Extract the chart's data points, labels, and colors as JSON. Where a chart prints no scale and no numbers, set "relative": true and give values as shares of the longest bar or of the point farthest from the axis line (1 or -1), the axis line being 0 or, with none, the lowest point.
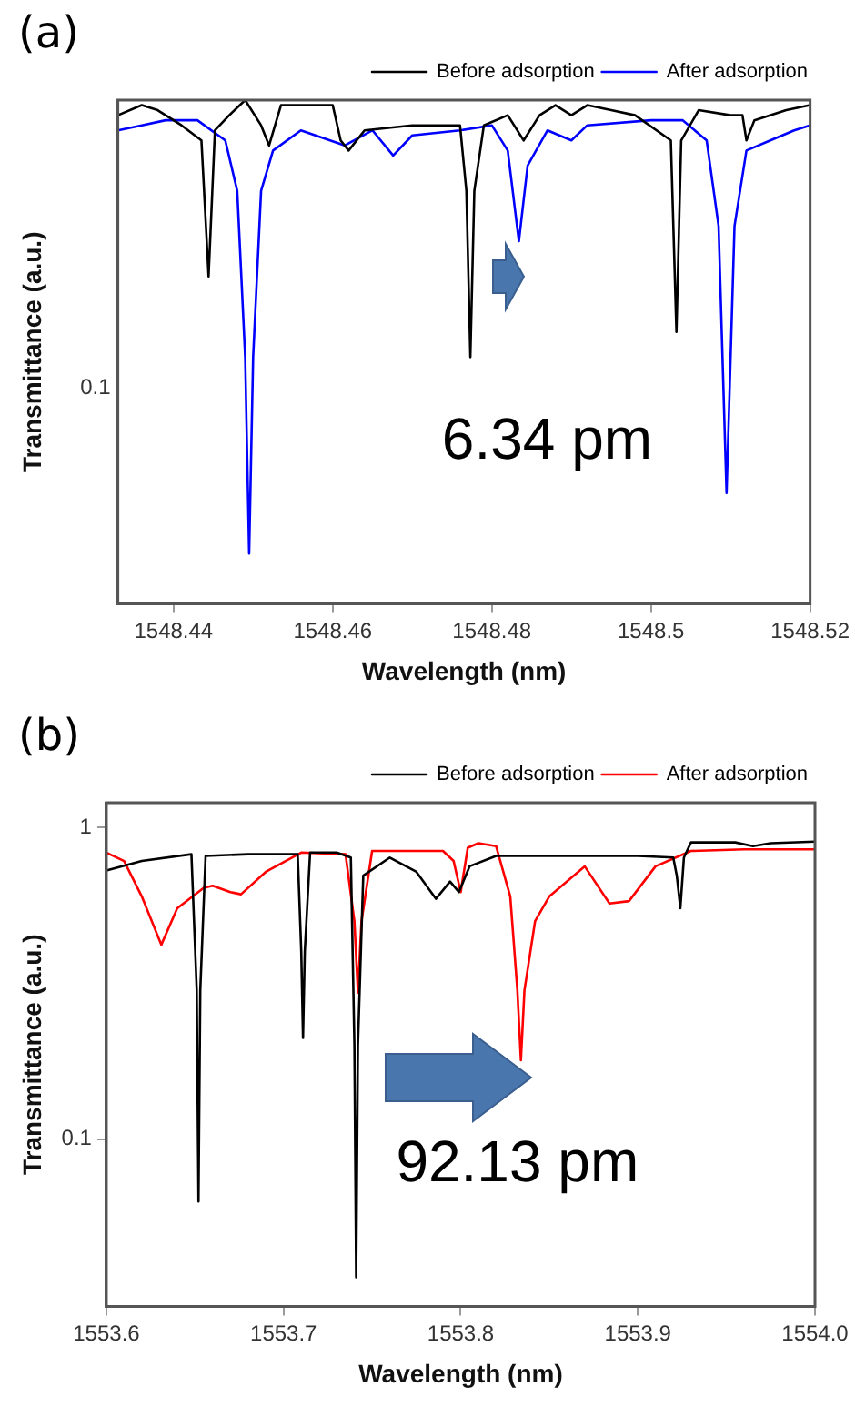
{
  "chart_data": [
    {
      "type": "line",
      "title": "(a)",
      "xlabel": "Wavelength (nm)",
      "ylabel": "Transmittance (a.u.)",
      "relative": true,
      "grid": false,
      "legend": "top right",
      "marker": "none",
      "line_style": "solid",
      "xlim": [
        1548.433,
        1548.52
      ],
      "xticks": [
        1548.44,
        1548.46,
        1548.48,
        1548.5,
        1548.52
      ],
      "annotations": [
        "6.34 pm",
        "0.1"
      ],
      "series": [
        {
          "name": "Before adsorption",
          "color": "#000000",
          "x": [
            1548.433,
            1548.436,
            1548.438,
            1548.441,
            1548.4435,
            1548.4444,
            1548.4452,
            1548.447,
            1548.449,
            1548.451,
            1548.452,
            1548.4535,
            1548.455,
            1548.46,
            1548.461,
            1548.462,
            1548.464,
            1548.47,
            1548.476,
            1548.4768,
            1548.4773,
            1548.4778,
            1548.479,
            1548.482,
            1548.484,
            1548.486,
            1548.488,
            1548.49,
            1548.492,
            1548.495,
            1548.498,
            1548.5025,
            1548.5032,
            1548.5038,
            1548.506,
            1548.51,
            1548.5115,
            1548.512,
            1548.513,
            1548.517,
            1548.52
          ],
          "values": [
            0.97,
            0.99,
            0.98,
            0.95,
            0.92,
            0.65,
            0.94,
            0.97,
            1,
            0.95,
            0.91,
            0.99,
            0.99,
            0.99,
            0.92,
            0.9,
            0.94,
            0.95,
            0.95,
            0.82,
            0.49,
            0.82,
            0.95,
            0.97,
            0.92,
            0.97,
            0.99,
            0.97,
            0.99,
            0.98,
            0.97,
            0.92,
            0.54,
            0.92,
            0.98,
            0.97,
            0.97,
            0.92,
            0.96,
            0.98,
            0.99
          ]
        },
        {
          "name": "After adsorption",
          "color": "#0000ff",
          "x": [
            1548.433,
            1548.436,
            1548.439,
            1548.443,
            1548.4465,
            1548.448,
            1548.449,
            1548.4495,
            1548.45,
            1548.451,
            1548.4525,
            1548.456,
            1548.4615,
            1548.465,
            1548.4676,
            1548.47,
            1548.476,
            1548.48,
            1548.482,
            1548.4834,
            1548.4845,
            1548.487,
            1548.49,
            1548.492,
            1548.5,
            1548.504,
            1548.507,
            1548.5085,
            1548.5095,
            1548.5105,
            1548.512,
            1548.515,
            1548.518,
            1548.52
          ],
          "values": [
            0.94,
            0.95,
            0.96,
            0.96,
            0.92,
            0.82,
            0.49,
            0.1,
            0.49,
            0.82,
            0.9,
            0.94,
            0.91,
            0.94,
            0.89,
            0.93,
            0.94,
            0.95,
            0.9,
            0.72,
            0.87,
            0.94,
            0.92,
            0.95,
            0.96,
            0.96,
            0.92,
            0.75,
            0.22,
            0.75,
            0.9,
            0.92,
            0.94,
            0.95
          ]
        }
      ]
    },
    {
      "type": "line",
      "title": "(b)",
      "xlabel": "Wavelength (nm)",
      "ylabel": "Transmittance (a.u.)",
      "log": "y",
      "grid": false,
      "legend": "top right",
      "marker": "none",
      "line_style": "solid",
      "xlim": [
        1553.6,
        1554.0
      ],
      "xticks": [
        1553.6,
        1553.7,
        1553.8,
        1553.9,
        {
          "value": 1554.0,
          "label": "1554.0"
        }
      ],
      "ylim": [
        0.029,
        1.2
      ],
      "yticks": [
        0.1,
        1
      ],
      "annotations": [
        "92.13 pm"
      ],
      "series": [
        {
          "name": "Before adsorption",
          "color": "#000000",
          "x": [
            1553.6,
            1553.62,
            1553.648,
            1553.651,
            1553.652,
            1553.653,
            1553.656,
            1553.68,
            1553.708,
            1553.71,
            1553.711,
            1553.712,
            1553.715,
            1553.73,
            1553.738,
            1553.74,
            1553.741,
            1553.742,
            1553.745,
            1553.76,
            1553.775,
            1553.786,
            1553.794,
            1553.799,
            1553.805,
            1553.82,
            1553.9,
            1553.92,
            1553.922,
            1553.924,
            1553.926,
            1553.93,
            1553.955,
            1553.965,
            1553.975,
            1554.0
          ],
          "values": [
            0.727,
            0.78,
            0.82,
            0.3,
            0.063,
            0.3,
            0.81,
            0.82,
            0.82,
            0.4,
            0.211,
            0.4,
            0.83,
            0.83,
            0.8,
            0.2,
            0.036,
            0.2,
            0.7,
            0.8,
            0.72,
            0.59,
            0.67,
            0.62,
            0.75,
            0.81,
            0.81,
            0.8,
            0.7,
            0.55,
            0.8,
            0.895,
            0.895,
            0.87,
            0.89,
            0.9
          ]
        },
        {
          "name": "After adsorption",
          "color": "#ff0000",
          "x": [
            1553.6,
            1553.61,
            1553.62,
            1553.631,
            1553.64,
            1553.655,
            1553.66,
            1553.67,
            1553.676,
            1553.69,
            1553.71,
            1553.735,
            1553.74,
            1553.742,
            1553.744,
            1553.75,
            1553.79,
            1553.796,
            1553.8,
            1553.804,
            1553.81,
            1553.82,
            1553.828,
            1553.832,
            1553.834,
            1553.836,
            1553.842,
            1553.85,
            1553.87,
            1553.884,
            1553.895,
            1553.91,
            1553.93,
            1553.96,
            1554.0
          ],
          "values": [
            0.83,
            0.78,
            0.6,
            0.42,
            0.55,
            0.64,
            0.65,
            0.62,
            0.61,
            0.72,
            0.83,
            0.82,
            0.5,
            0.295,
            0.5,
            0.84,
            0.84,
            0.78,
            0.62,
            0.86,
            0.89,
            0.87,
            0.6,
            0.3,
            0.179,
            0.3,
            0.5,
            0.6,
            0.75,
            0.57,
            0.58,
            0.75,
            0.84,
            0.85,
            0.85
          ]
        }
      ]
    }
  ]
}
